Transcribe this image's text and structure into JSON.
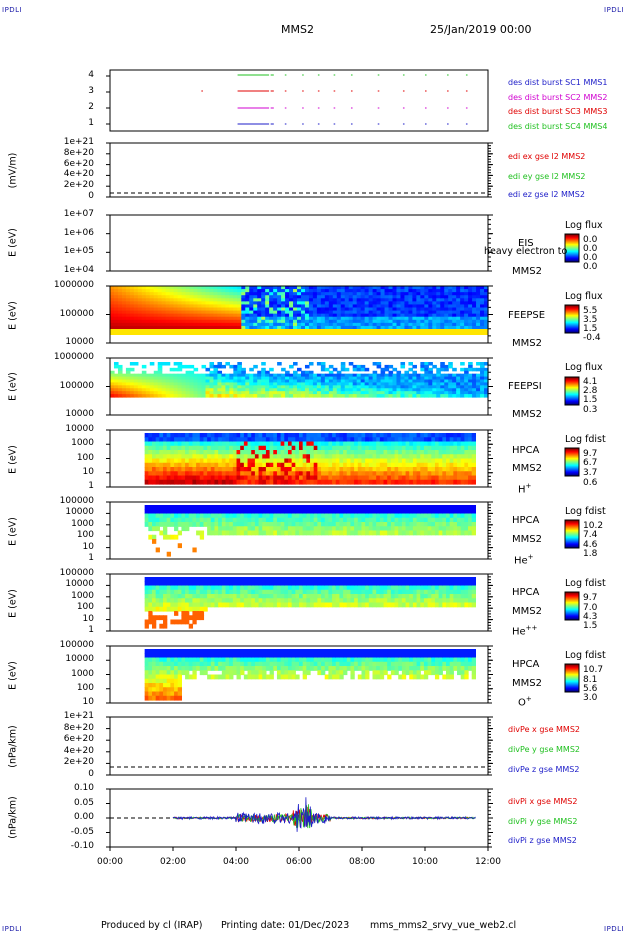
{
  "corners": {
    "tl": "IPDLI",
    "tr": "IPDLI",
    "bl": "IPDLI",
    "br": "IPDLI"
  },
  "header": {
    "title": "MMS2",
    "date": "25/Jan/2019 00:00"
  },
  "footer": {
    "produced": "Produced by cl (IRAP)",
    "printed": "Printing date: 01/Dec/2023",
    "file": "mms_mms2_srvy_vue_web2.cl"
  },
  "colors": {
    "blue": "#1c1cc8",
    "red": "#e00000",
    "magenta": "#d000d0",
    "green": "#20c020"
  },
  "chart_data": [
    {
      "type": "line",
      "name": "burst-panel",
      "yticks": [
        "4",
        "3",
        "2",
        "1"
      ],
      "legend": [
        "des dist burst SC1 MMS1",
        "des dist burst SC2 MMS2",
        "des dist burst SC3 MMS3",
        "des dist burst SC4 MMS4"
      ],
      "series": [
        {
          "name": "des dist burst SC1 MMS1",
          "y": 1
        },
        {
          "name": "des dist burst SC2 MMS2",
          "y": 2
        },
        {
          "name": "des dist burst SC3 MMS3",
          "y": 3
        },
        {
          "name": "des dist burst SC4 MMS4",
          "y": 4
        }
      ],
      "x_segments_hours": [
        [
          2.9,
          2.95
        ],
        [
          4.05,
          5.05
        ],
        [
          5.1,
          5.2
        ],
        [
          5.55,
          5.6
        ],
        [
          6.1,
          6.15
        ],
        [
          6.6,
          6.65
        ],
        [
          7.1,
          7.15
        ],
        [
          7.65,
          7.7
        ],
        [
          8.5,
          8.55
        ],
        [
          9.3,
          9.35
        ],
        [
          10.0,
          10.05
        ],
        [
          10.7,
          10.75
        ],
        [
          11.3,
          11.35
        ]
      ]
    },
    {
      "type": "line",
      "name": "edi-panel",
      "ylabel": "(mV/m)",
      "yticks": [
        "1e+21",
        "8e+20",
        "6e+20",
        "4e+20",
        "2e+20",
        "0"
      ],
      "legend": [
        "edi ex gse l2 MMS2",
        "edi ey gse l2 MMS2",
        "edi ez gse l2 MMS2"
      ]
    },
    {
      "type": "heatmap",
      "name": "eis-panel",
      "ylabel": "E (eV)",
      "yticks": [
        "1e+07",
        "1e+06",
        "1e+05",
        "1e+04"
      ],
      "instrument": [
        "EIS",
        "MMS2"
      ],
      "overlay": "heavy electron to",
      "cbar_title": "Log flux",
      "cbar_values": [
        "0.0",
        "0.0",
        "0.0",
        "0.0"
      ]
    },
    {
      "type": "heatmap",
      "name": "feepse-panel",
      "ylabel": "E (eV)",
      "yticks": [
        "1000000",
        "100000",
        "10000"
      ],
      "instrument": [
        "FEEPSE",
        "MMS2"
      ],
      "cbar_title": "Log flux",
      "cbar_values": [
        "5.5",
        "3.5",
        "1.5",
        "-0.4"
      ]
    },
    {
      "type": "heatmap",
      "name": "feepsi-panel",
      "ylabel": "E (eV)",
      "yticks": [
        "1000000",
        "100000",
        "10000"
      ],
      "instrument": [
        "FEEPSI",
        "MMS2"
      ],
      "cbar_title": "Log flux",
      "cbar_values": [
        "4.1",
        "2.8",
        "1.5",
        "0.3"
      ]
    },
    {
      "type": "heatmap",
      "name": "hpca-h-panel",
      "ylabel": "E (eV)",
      "yticks": [
        "10000",
        "1000",
        "100",
        "10",
        "1"
      ],
      "instrument": [
        "HPCA",
        "MMS2"
      ],
      "species": "H",
      "charge": "+",
      "cbar_title": "Log fdist",
      "cbar_values": [
        "9.7",
        "6.7",
        "3.7",
        "0.6"
      ]
    },
    {
      "type": "heatmap",
      "name": "hpca-he-panel",
      "ylabel": "E (eV)",
      "yticks": [
        "100000",
        "10000",
        "1000",
        "100",
        "10",
        "1"
      ],
      "instrument": [
        "HPCA",
        "MMS2"
      ],
      "species": "He",
      "charge": "+",
      "cbar_title": "Log fdist",
      "cbar_values": [
        "10.2",
        "7.4",
        "4.6",
        "1.8"
      ]
    },
    {
      "type": "heatmap",
      "name": "hpca-he2-panel",
      "ylabel": "E (eV)",
      "yticks": [
        "100000",
        "10000",
        "1000",
        "100",
        "10",
        "1"
      ],
      "instrument": [
        "HPCA",
        "MMS2"
      ],
      "species": "He",
      "charge": "++",
      "cbar_title": "Log fdist",
      "cbar_values": [
        "9.7",
        "7.0",
        "4.3",
        "1.5"
      ]
    },
    {
      "type": "heatmap",
      "name": "hpca-o-panel",
      "ylabel": "E (eV)",
      "yticks": [
        "100000",
        "10000",
        "1000",
        "100",
        "10"
      ],
      "instrument": [
        "HPCA",
        "MMS2"
      ],
      "species": "O",
      "charge": "+",
      "cbar_title": "Log fdist",
      "cbar_values": [
        "10.7",
        "8.1",
        "5.6",
        "3.0"
      ]
    },
    {
      "type": "line",
      "name": "divpe-panel",
      "ylabel": "(nPa/km)",
      "yticks": [
        "1e+21",
        "8e+20",
        "6e+20",
        "4e+20",
        "2e+20",
        "0"
      ],
      "legend": [
        "divPe x gse MMS2",
        "divPe y gse MMS2",
        "divPe z gse MMS2"
      ]
    },
    {
      "type": "line",
      "name": "divpi-panel",
      "ylabel": "(nPa/km)",
      "yticks": [
        "0.10",
        "0.05",
        "0.00",
        "-0.05",
        "-0.10"
      ],
      "ylim": [
        -0.1,
        0.1
      ],
      "legend": [
        "divPi x gse MMS2",
        "divPi y gse MMS2",
        "divPi z gse MMS2"
      ]
    }
  ],
  "xaxis": {
    "ticks": [
      "00:00",
      "02:00",
      "04:00",
      "06:00",
      "08:00",
      "10:00",
      "12:00"
    ],
    "xlim_hours": [
      0,
      12
    ]
  }
}
